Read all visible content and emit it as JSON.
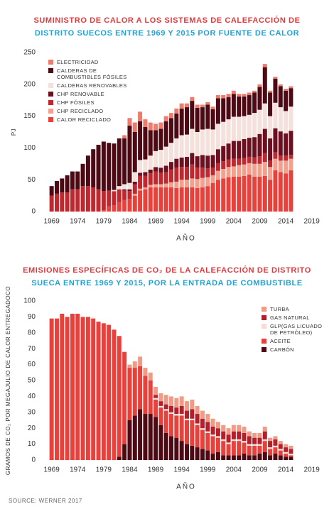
{
  "chart_data": [
    {
      "type": "stacked_bar",
      "title": "SUMINISTRO DE CALOR A LOS SISTEMAS DE CALEFACCIÓN DE",
      "subtitle": "DISTRITO SUECOS ENTRE 1969 Y 2015 POR FUENTE DE CALOR",
      "x_label": "AÑO",
      "y_label": "PJ",
      "x": [
        1969,
        1970,
        1971,
        1972,
        1973,
        1974,
        1975,
        1976,
        1977,
        1978,
        1979,
        1980,
        1981,
        1982,
        1983,
        1984,
        1985,
        1986,
        1987,
        1988,
        1989,
        1990,
        1991,
        1992,
        1993,
        1994,
        1995,
        1996,
        1997,
        1998,
        1999,
        2000,
        2001,
        2002,
        2003,
        2004,
        2005,
        2006,
        2007,
        2008,
        2009,
        2010,
        2011,
        2012,
        2013,
        2014,
        2015
      ],
      "xlim": [
        1967,
        2020
      ],
      "xticks": [
        1969,
        1974,
        1979,
        1984,
        1989,
        1994,
        1999,
        2004,
        2009,
        2014,
        2019
      ],
      "ylim": [
        0,
        250
      ],
      "yticks": [
        0,
        50,
        100,
        150,
        200,
        250
      ],
      "legend": "top-left",
      "series": [
        {
          "name": "CALOR RECICLADO",
          "color": "#e8413c",
          "values": [
            0,
            0,
            0,
            0,
            0,
            0,
            0,
            0,
            0,
            0,
            2,
            8,
            10,
            15,
            18,
            20,
            25,
            33,
            35,
            38,
            38,
            38,
            38,
            38,
            37,
            38,
            38,
            38,
            37,
            38,
            40,
            45,
            50,
            52,
            54,
            55,
            55,
            56,
            58,
            55,
            55,
            56,
            50,
            65,
            62,
            60,
            65
          ]
        },
        {
          "name": "CHP RECICLADO",
          "color": "#f4a08e",
          "values": [
            0,
            0,
            0,
            0,
            0,
            0,
            0,
            0,
            0,
            0,
            0,
            0,
            0,
            0,
            0,
            0,
            3,
            3,
            3,
            4,
            5,
            5,
            6,
            8,
            10,
            12,
            12,
            14,
            14,
            15,
            14,
            12,
            14,
            15,
            16,
            16,
            18,
            18,
            18,
            20,
            20,
            22,
            20,
            18,
            18,
            20,
            18
          ]
        },
        {
          "name": "CHP FÓSILES",
          "color": "#c0282f",
          "values": [
            25,
            28,
            30,
            30,
            35,
            35,
            40,
            40,
            38,
            35,
            30,
            25,
            22,
            20,
            15,
            12,
            15,
            20,
            18,
            18,
            20,
            18,
            18,
            20,
            22,
            20,
            20,
            22,
            18,
            16,
            14,
            12,
            12,
            12,
            12,
            12,
            10,
            10,
            10,
            10,
            12,
            14,
            10,
            10,
            8,
            8,
            6
          ]
        },
        {
          "name": "CHP RENOVABLE",
          "color": "#6d0f1f",
          "values": [
            0,
            0,
            0,
            0,
            0,
            0,
            0,
            0,
            0,
            0,
            0,
            0,
            0,
            0,
            2,
            3,
            4,
            5,
            6,
            6,
            7,
            8,
            10,
            12,
            14,
            15,
            16,
            18,
            18,
            20,
            20,
            20,
            22,
            24,
            25,
            28,
            28,
            30,
            30,
            32,
            35,
            38,
            35,
            38,
            38,
            35,
            38
          ]
        },
        {
          "name": "CALDERAS RENOVABLES",
          "color": "#f5e1dc",
          "values": [
            0,
            0,
            0,
            0,
            0,
            0,
            0,
            0,
            0,
            0,
            0,
            0,
            2,
            5,
            8,
            10,
            15,
            20,
            20,
            22,
            25,
            28,
            30,
            30,
            32,
            35,
            35,
            38,
            38,
            40,
            42,
            40,
            40,
            38,
            38,
            38,
            38,
            36,
            36,
            38,
            38,
            40,
            35,
            40,
            38,
            35,
            38
          ]
        },
        {
          "name": "CALDERAS DE COMBUSTIBLES FÓSILES",
          "color": "#4e0a14",
          "values": [
            15,
            20,
            22,
            27,
            28,
            28,
            35,
            48,
            60,
            70,
            78,
            75,
            73,
            75,
            72,
            90,
            63,
            61,
            51,
            40,
            33,
            33,
            40,
            39,
            39,
            42,
            43,
            44,
            38,
            35,
            38,
            32,
            40,
            37,
            35,
            36,
            32,
            31,
            31,
            32,
            36,
            57,
            37,
            38,
            33,
            32,
            29
          ]
        },
        {
          "name": "ELECTRICIDAD",
          "color": "#ef7b6c",
          "values": [
            0,
            0,
            0,
            0,
            0,
            0,
            0,
            0,
            0,
            0,
            0,
            0,
            0,
            0,
            5,
            12,
            15,
            15,
            12,
            12,
            10,
            10,
            8,
            8,
            8,
            8,
            6,
            6,
            5,
            4,
            4,
            4,
            5,
            5,
            5,
            5,
            4,
            4,
            4,
            3,
            4,
            5,
            3,
            3,
            3,
            3,
            3
          ]
        }
      ]
    },
    {
      "type": "stacked_bar",
      "title": "EMISIONES ESPECÍFICAS DE CO₂ DE LA CALEFACCIÓN DE DISTRITO",
      "subtitle": "SUECA ENTRE 1969 Y 2015, POR LA ENTRADA DE COMBUSTIBLE",
      "x_label": "AÑO",
      "y_label": "GRAMOS DE CO₂ POR MEGAJULIO DE CALOR ENTREGADOCO",
      "x": [
        1969,
        1970,
        1971,
        1972,
        1973,
        1974,
        1975,
        1976,
        1977,
        1978,
        1979,
        1980,
        1981,
        1982,
        1983,
        1984,
        1985,
        1986,
        1987,
        1988,
        1989,
        1990,
        1991,
        1992,
        1993,
        1994,
        1995,
        1996,
        1997,
        1998,
        1999,
        2000,
        2001,
        2002,
        2003,
        2004,
        2005,
        2006,
        2007,
        2008,
        2009,
        2010,
        2011,
        2012,
        2013,
        2014,
        2015
      ],
      "xlim": [
        1967,
        2020
      ],
      "xticks": [
        1969,
        1974,
        1979,
        1984,
        1989,
        1994,
        1999,
        2004,
        2009,
        2014,
        2019
      ],
      "ylim": [
        0,
        100
      ],
      "yticks": [
        0,
        10,
        20,
        30,
        40,
        50,
        60,
        70,
        80,
        90,
        100
      ],
      "legend": "top-right",
      "series": [
        {
          "name": "CARBÓN",
          "color": "#4e0a14",
          "values": [
            0,
            0,
            0,
            0,
            0,
            0,
            0,
            0,
            0,
            0,
            0,
            0,
            0,
            2,
            10,
            25,
            28,
            32,
            29,
            29,
            27,
            22,
            17,
            15,
            14,
            12,
            10,
            9,
            8,
            7,
            6,
            4,
            5,
            3,
            3,
            3,
            3,
            4,
            3,
            3,
            4,
            5,
            3,
            4,
            3,
            2,
            2
          ]
        },
        {
          "name": "ACEITE",
          "color": "#e8413c",
          "values": [
            89,
            89,
            92,
            90,
            92,
            92,
            90,
            90,
            89,
            87,
            86,
            85,
            82,
            76,
            58,
            33,
            30,
            27,
            24,
            21,
            11,
            11,
            14,
            14,
            14,
            16,
            15,
            16,
            14,
            12,
            11,
            11,
            9,
            9,
            7,
            9,
            9,
            7,
            6,
            6,
            5,
            7,
            4,
            4,
            3,
            2,
            1
          ]
        },
        {
          "name": "GLP(GAS LICUADO DE PETRÓLEO)",
          "color": "#f6dcd6",
          "values": [
            0,
            0,
            0,
            0,
            0,
            0,
            0,
            0,
            0,
            0,
            0,
            0,
            0,
            0,
            0,
            0,
            0,
            0,
            0,
            0,
            1,
            1,
            1,
            1,
            1,
            1,
            1,
            1,
            1,
            1,
            1,
            1,
            1,
            1,
            1,
            1,
            1,
            1,
            1,
            1,
            1,
            1,
            1,
            1,
            1,
            1,
            1
          ]
        },
        {
          "name": "GAS NATURAL",
          "color": "#b3202b",
          "values": [
            0,
            0,
            0,
            0,
            0,
            0,
            0,
            0,
            0,
            0,
            0,
            0,
            0,
            0,
            0,
            0,
            0,
            0,
            0,
            0,
            2,
            3,
            3,
            4,
            4,
            5,
            5,
            6,
            6,
            6,
            6,
            5,
            5,
            5,
            5,
            5,
            5,
            5,
            5,
            4,
            4,
            5,
            4,
            4,
            3,
            3,
            3
          ]
        },
        {
          "name": "TURBA",
          "color": "#f19a86",
          "values": [
            0,
            0,
            0,
            0,
            0,
            0,
            0,
            0,
            0,
            0,
            0,
            0,
            0,
            0,
            0,
            2,
            4,
            6,
            5,
            5,
            5,
            5,
            6,
            6,
            6,
            6,
            6,
            6,
            5,
            5,
            5,
            5,
            4,
            4,
            4,
            4,
            4,
            4,
            3,
            3,
            3,
            3,
            2,
            2,
            2,
            2,
            2
          ]
        }
      ]
    }
  ],
  "source": "SOURCE: WERNER 2017"
}
